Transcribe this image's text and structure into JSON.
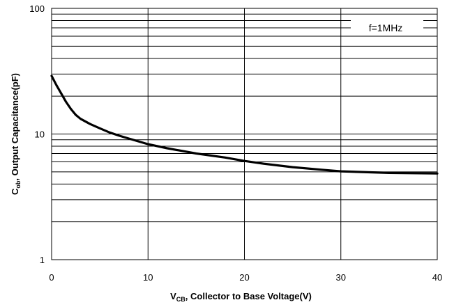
{
  "chart_data": {
    "type": "line",
    "x_axis": {
      "scale": "linear",
      "range": [
        0,
        40
      ],
      "ticks": [
        0,
        10,
        20,
        30,
        40
      ],
      "tick_labels": [
        "0",
        "10",
        "20",
        "30",
        "40"
      ],
      "label_main": "V",
      "label_sub": "CB",
      "label_rest": ", Collector  to Base Voltage(V)"
    },
    "y_axis": {
      "scale": "log",
      "range": [
        1,
        100
      ],
      "ticks": [
        1,
        10,
        100
      ],
      "tick_labels": [
        "1",
        "10",
        "100"
      ],
      "minor_gridlines": [
        2,
        3,
        4,
        5,
        6,
        7,
        8,
        9,
        20,
        30,
        40,
        50,
        60,
        70,
        80,
        90
      ],
      "label_main": "C",
      "label_sub": "ob",
      "label_rest": ", Output  Capacitance(pF)"
    },
    "grid": true,
    "annotation": "f=1MHz",
    "series": [
      {
        "x": [
          0,
          0.5,
          1,
          1.5,
          2,
          2.5,
          3,
          4,
          5,
          6,
          7,
          8,
          10,
          12,
          15,
          18,
          20,
          22,
          25,
          28,
          30,
          35,
          40
        ],
        "y": [
          29,
          24.5,
          21,
          18,
          15.8,
          14.2,
          13.2,
          12,
          11.1,
          10.3,
          9.7,
          9.2,
          8.3,
          7.7,
          7.0,
          6.5,
          6.1,
          5.8,
          5.45,
          5.2,
          5.05,
          4.9,
          4.85
        ]
      }
    ]
  }
}
